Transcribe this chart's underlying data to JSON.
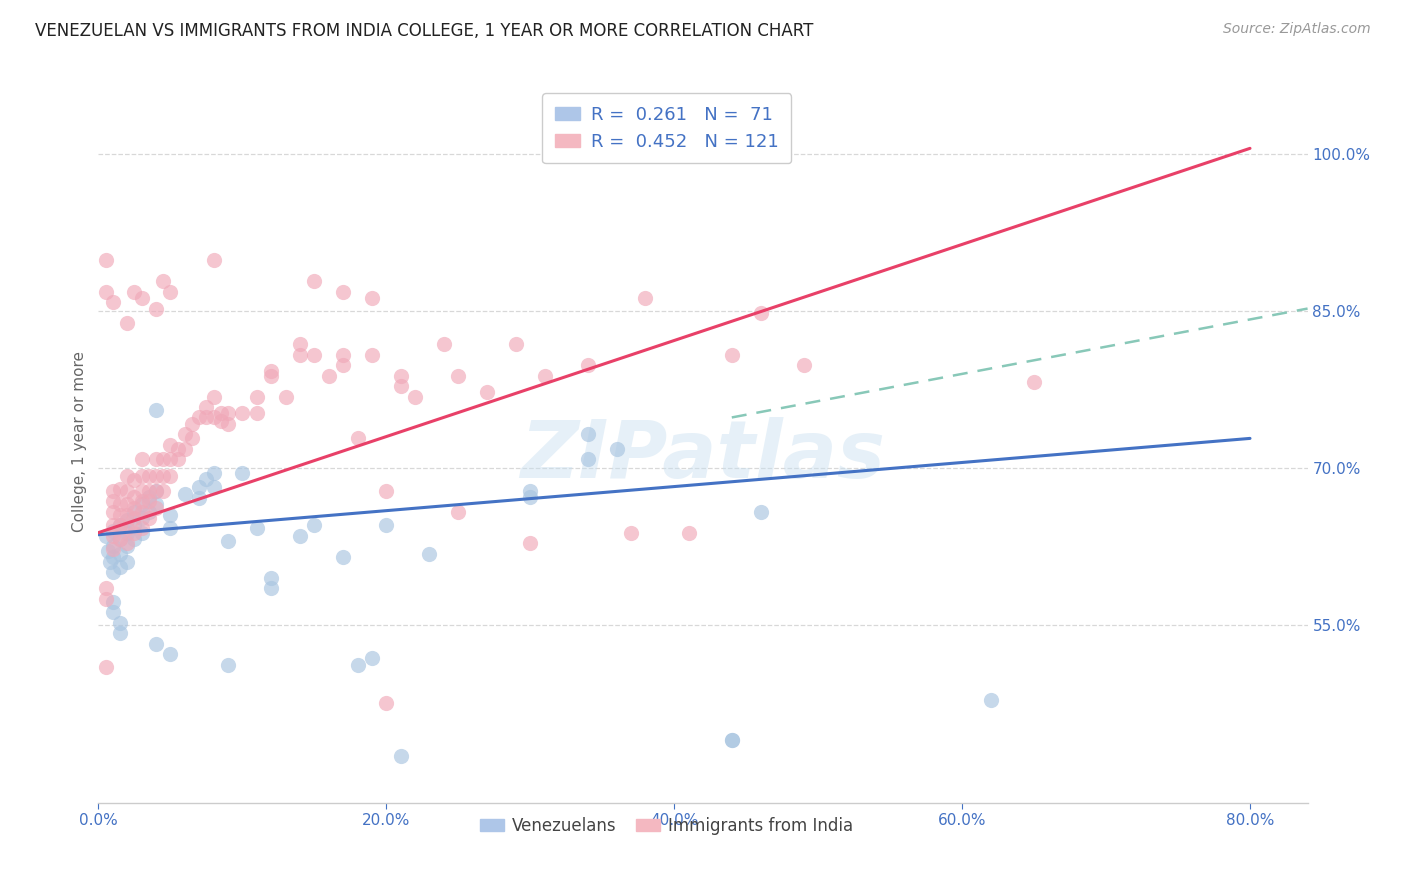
{
  "title": "VENEZUELAN VS IMMIGRANTS FROM INDIA COLLEGE, 1 YEAR OR MORE CORRELATION CHART",
  "source": "Source: ZipAtlas.com",
  "ylabel": "College, 1 year or more",
  "x_ticks": [
    "0.0%",
    "20.0%",
    "40.0%",
    "60.0%",
    "80.0%"
  ],
  "x_tick_vals": [
    0.0,
    0.2,
    0.4,
    0.6,
    0.8
  ],
  "y_ticks_right": [
    "55.0%",
    "70.0%",
    "85.0%",
    "100.0%"
  ],
  "y_tick_vals_right": [
    0.55,
    0.7,
    0.85,
    1.0
  ],
  "xlim": [
    0.0,
    0.84
  ],
  "ylim": [
    0.38,
    1.07
  ],
  "venezuelan_color": "#a8c4e0",
  "india_color": "#f0a8b8",
  "venezuelan_line_color": "#4472c4",
  "india_line_color": "#e84068",
  "trend_ext_color": "#88c8b8",
  "watermark": "ZIPatlas",
  "background_color": "#ffffff",
  "grid_color": "#d8d8d8",
  "venezuelan_scatter": [
    [
      0.005,
      0.635
    ],
    [
      0.007,
      0.62
    ],
    [
      0.008,
      0.61
    ],
    [
      0.01,
      0.64
    ],
    [
      0.01,
      0.625
    ],
    [
      0.01,
      0.615
    ],
    [
      0.01,
      0.6
    ],
    [
      0.015,
      0.645
    ],
    [
      0.015,
      0.632
    ],
    [
      0.015,
      0.618
    ],
    [
      0.015,
      0.605
    ],
    [
      0.02,
      0.65
    ],
    [
      0.02,
      0.638
    ],
    [
      0.02,
      0.625
    ],
    [
      0.02,
      0.61
    ],
    [
      0.025,
      0.658
    ],
    [
      0.025,
      0.645
    ],
    [
      0.025,
      0.632
    ],
    [
      0.03,
      0.665
    ],
    [
      0.03,
      0.652
    ],
    [
      0.03,
      0.638
    ],
    [
      0.035,
      0.672
    ],
    [
      0.035,
      0.658
    ],
    [
      0.04,
      0.678
    ],
    [
      0.04,
      0.665
    ],
    [
      0.04,
      0.755
    ],
    [
      0.05,
      0.655
    ],
    [
      0.05,
      0.642
    ],
    [
      0.06,
      0.675
    ],
    [
      0.07,
      0.682
    ],
    [
      0.07,
      0.671
    ],
    [
      0.075,
      0.689
    ],
    [
      0.08,
      0.695
    ],
    [
      0.08,
      0.682
    ],
    [
      0.09,
      0.63
    ],
    [
      0.1,
      0.695
    ],
    [
      0.11,
      0.642
    ],
    [
      0.12,
      0.595
    ],
    [
      0.12,
      0.585
    ],
    [
      0.14,
      0.635
    ],
    [
      0.15,
      0.645
    ],
    [
      0.17,
      0.615
    ],
    [
      0.18,
      0.512
    ],
    [
      0.19,
      0.518
    ],
    [
      0.2,
      0.645
    ],
    [
      0.23,
      0.618
    ],
    [
      0.3,
      0.678
    ],
    [
      0.3,
      0.672
    ],
    [
      0.34,
      0.708
    ],
    [
      0.34,
      0.732
    ],
    [
      0.36,
      0.718
    ],
    [
      0.44,
      0.44
    ],
    [
      0.46,
      0.658
    ],
    [
      0.62,
      0.478
    ],
    [
      0.01,
      0.572
    ],
    [
      0.01,
      0.562
    ],
    [
      0.015,
      0.552
    ],
    [
      0.015,
      0.542
    ],
    [
      0.04,
      0.532
    ],
    [
      0.05,
      0.522
    ],
    [
      0.09,
      0.512
    ],
    [
      0.21,
      0.425
    ],
    [
      0.44,
      0.44
    ]
  ],
  "india_scatter": [
    [
      0.005,
      0.575
    ],
    [
      0.005,
      0.585
    ],
    [
      0.005,
      0.51
    ],
    [
      0.01,
      0.622
    ],
    [
      0.01,
      0.635
    ],
    [
      0.01,
      0.645
    ],
    [
      0.01,
      0.658
    ],
    [
      0.01,
      0.668
    ],
    [
      0.01,
      0.678
    ],
    [
      0.015,
      0.632
    ],
    [
      0.015,
      0.645
    ],
    [
      0.015,
      0.655
    ],
    [
      0.015,
      0.665
    ],
    [
      0.015,
      0.68
    ],
    [
      0.02,
      0.628
    ],
    [
      0.02,
      0.642
    ],
    [
      0.02,
      0.655
    ],
    [
      0.02,
      0.665
    ],
    [
      0.02,
      0.678
    ],
    [
      0.02,
      0.692
    ],
    [
      0.025,
      0.638
    ],
    [
      0.025,
      0.652
    ],
    [
      0.025,
      0.662
    ],
    [
      0.025,
      0.672
    ],
    [
      0.025,
      0.688
    ],
    [
      0.03,
      0.642
    ],
    [
      0.03,
      0.658
    ],
    [
      0.03,
      0.668
    ],
    [
      0.03,
      0.678
    ],
    [
      0.03,
      0.692
    ],
    [
      0.03,
      0.708
    ],
    [
      0.035,
      0.652
    ],
    [
      0.035,
      0.668
    ],
    [
      0.035,
      0.678
    ],
    [
      0.035,
      0.692
    ],
    [
      0.04,
      0.662
    ],
    [
      0.04,
      0.678
    ],
    [
      0.04,
      0.692
    ],
    [
      0.04,
      0.708
    ],
    [
      0.045,
      0.678
    ],
    [
      0.045,
      0.692
    ],
    [
      0.045,
      0.708
    ],
    [
      0.05,
      0.692
    ],
    [
      0.05,
      0.708
    ],
    [
      0.05,
      0.722
    ],
    [
      0.055,
      0.708
    ],
    [
      0.055,
      0.718
    ],
    [
      0.06,
      0.718
    ],
    [
      0.06,
      0.732
    ],
    [
      0.065,
      0.728
    ],
    [
      0.065,
      0.742
    ],
    [
      0.07,
      0.748
    ],
    [
      0.075,
      0.748
    ],
    [
      0.075,
      0.758
    ],
    [
      0.08,
      0.748
    ],
    [
      0.08,
      0.768
    ],
    [
      0.085,
      0.745
    ],
    [
      0.085,
      0.752
    ],
    [
      0.09,
      0.742
    ],
    [
      0.09,
      0.752
    ],
    [
      0.1,
      0.752
    ],
    [
      0.11,
      0.752
    ],
    [
      0.11,
      0.768
    ],
    [
      0.12,
      0.792
    ],
    [
      0.12,
      0.788
    ],
    [
      0.13,
      0.768
    ],
    [
      0.14,
      0.808
    ],
    [
      0.14,
      0.818
    ],
    [
      0.15,
      0.808
    ],
    [
      0.16,
      0.788
    ],
    [
      0.17,
      0.798
    ],
    [
      0.17,
      0.808
    ],
    [
      0.18,
      0.728
    ],
    [
      0.19,
      0.808
    ],
    [
      0.2,
      0.678
    ],
    [
      0.21,
      0.778
    ],
    [
      0.21,
      0.788
    ],
    [
      0.22,
      0.768
    ],
    [
      0.24,
      0.818
    ],
    [
      0.25,
      0.788
    ],
    [
      0.25,
      0.658
    ],
    [
      0.27,
      0.772
    ],
    [
      0.29,
      0.818
    ],
    [
      0.31,
      0.788
    ],
    [
      0.34,
      0.798
    ],
    [
      0.37,
      0.638
    ],
    [
      0.38,
      0.862
    ],
    [
      0.41,
      0.638
    ],
    [
      0.44,
      0.808
    ],
    [
      0.46,
      0.848
    ],
    [
      0.49,
      0.798
    ],
    [
      0.005,
      0.898
    ],
    [
      0.005,
      0.868
    ],
    [
      0.01,
      0.858
    ],
    [
      0.02,
      0.838
    ],
    [
      0.025,
      0.868
    ],
    [
      0.03,
      0.862
    ],
    [
      0.04,
      0.852
    ],
    [
      0.045,
      0.878
    ],
    [
      0.05,
      0.868
    ],
    [
      0.08,
      0.898
    ],
    [
      0.15,
      0.878
    ],
    [
      0.17,
      0.868
    ],
    [
      0.19,
      0.862
    ],
    [
      0.65,
      0.782
    ],
    [
      0.2,
      0.475
    ],
    [
      0.3,
      0.628
    ]
  ],
  "venezuelan_line": {
    "x0": 0.0,
    "y0": 0.636,
    "x1": 0.8,
    "y1": 0.728
  },
  "india_line": {
    "x0": 0.0,
    "y0": 0.638,
    "x1": 0.8,
    "y1": 1.005
  },
  "trend_ext_line": {
    "x0": 0.44,
    "y0": 0.748,
    "x1": 0.84,
    "y1": 0.852
  }
}
